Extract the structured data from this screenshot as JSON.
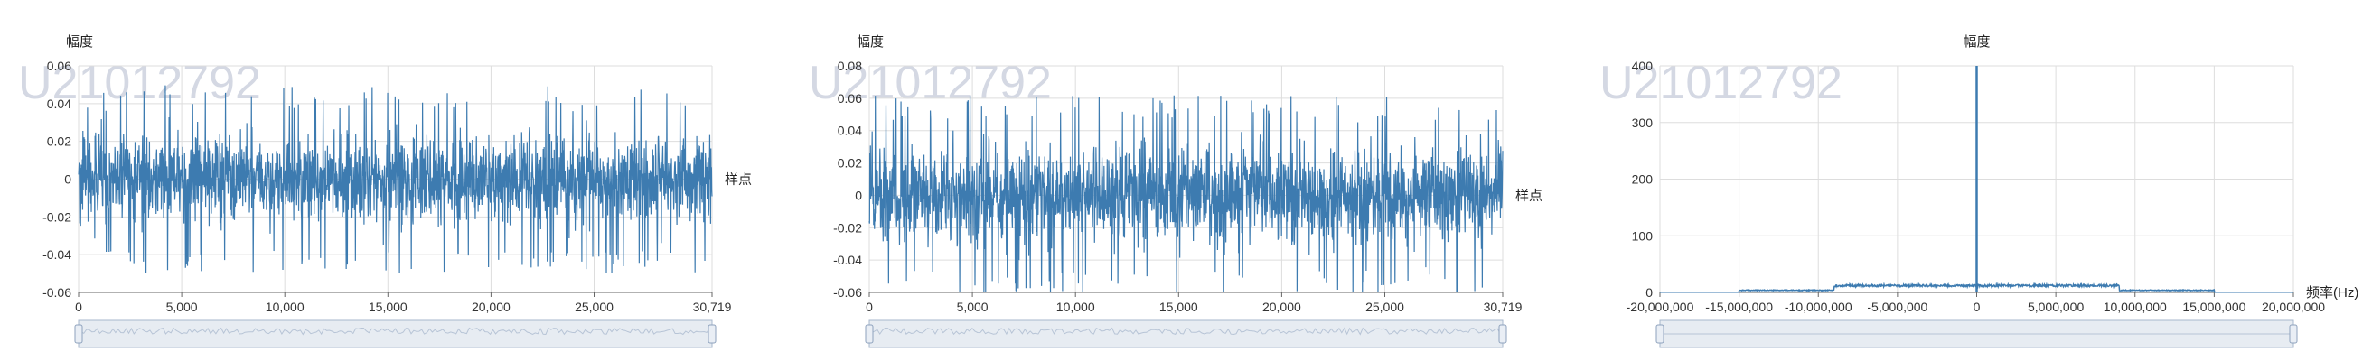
{
  "watermark": "U21012792",
  "colors": {
    "series": "#3d7bb0",
    "grid": "#dddddd",
    "axis": "#666666",
    "slider": "#d3dce8",
    "handle": "#a7b7cc"
  },
  "chart_data": [
    {
      "type": "line",
      "title": "",
      "ylabel": "幅度",
      "xlabel": "样点",
      "xlim": [
        0,
        30719
      ],
      "ylim": [
        -0.06,
        0.06
      ],
      "x_ticks": [
        "0",
        "5,000",
        "10,000",
        "15,000",
        "20,000",
        "25,000",
        "30,719"
      ],
      "x_tick_values": [
        0,
        5000,
        10000,
        15000,
        20000,
        25000,
        30719
      ],
      "y_ticks": [
        "0.06",
        "0.04",
        "0.02",
        "0",
        "-0.02",
        "-0.04",
        "-0.06"
      ],
      "y_tick_values": [
        0.06,
        0.04,
        0.02,
        0,
        -0.02,
        -0.04,
        -0.06
      ],
      "grid": true,
      "data_zoom": true,
      "signal": {
        "description_kind": "noise",
        "center": 0.0,
        "body_amplitude": 0.02,
        "peak_amplitude": 0.05
      }
    },
    {
      "type": "line",
      "title": "",
      "ylabel": "幅度",
      "xlabel": "样点",
      "xlim": [
        0,
        30719
      ],
      "ylim": [
        -0.06,
        0.08
      ],
      "x_ticks": [
        "0",
        "5,000",
        "10,000",
        "15,000",
        "20,000",
        "25,000",
        "30,719"
      ],
      "x_tick_values": [
        0,
        5000,
        10000,
        15000,
        20000,
        25000,
        30719
      ],
      "y_ticks": [
        "0.08",
        "0.06",
        "0.04",
        "0.02",
        "0",
        "-0.02",
        "-0.04",
        "-0.06"
      ],
      "y_tick_values": [
        0.08,
        0.06,
        0.04,
        0.02,
        0,
        -0.02,
        -0.04,
        -0.06
      ],
      "grid": true,
      "data_zoom": true,
      "signal": {
        "description_kind": "noise",
        "center": 0.0,
        "body_amplitude": 0.025,
        "peak_amplitude": 0.062
      }
    },
    {
      "type": "line",
      "title": "幅度",
      "ylabel": "",
      "xlabel": "频率(Hz)",
      "xlim": [
        -20000000,
        20000000
      ],
      "ylim": [
        0,
        400
      ],
      "x_ticks": [
        "-20,000,000",
        "-15,000,000",
        "-10,000,000",
        "-5,000,000",
        "0",
        "5,000,000",
        "10,000,000",
        "15,000,000",
        "20,000,000"
      ],
      "x_tick_values": [
        -20000000,
        -15000000,
        -10000000,
        -5000000,
        0,
        5000000,
        10000000,
        15000000,
        20000000
      ],
      "y_ticks": [
        "400",
        "300",
        "200",
        "100",
        "0"
      ],
      "y_tick_values": [
        400,
        300,
        200,
        100,
        0
      ],
      "grid": true,
      "data_zoom": true,
      "spectrum": {
        "peak_x": 0,
        "peak_y": 400,
        "band_edges": [
          -9000000,
          9000000
        ],
        "band_level": 10,
        "shoulder_edges": [
          -15000000,
          15000000
        ],
        "shoulder_level": 3
      }
    }
  ]
}
